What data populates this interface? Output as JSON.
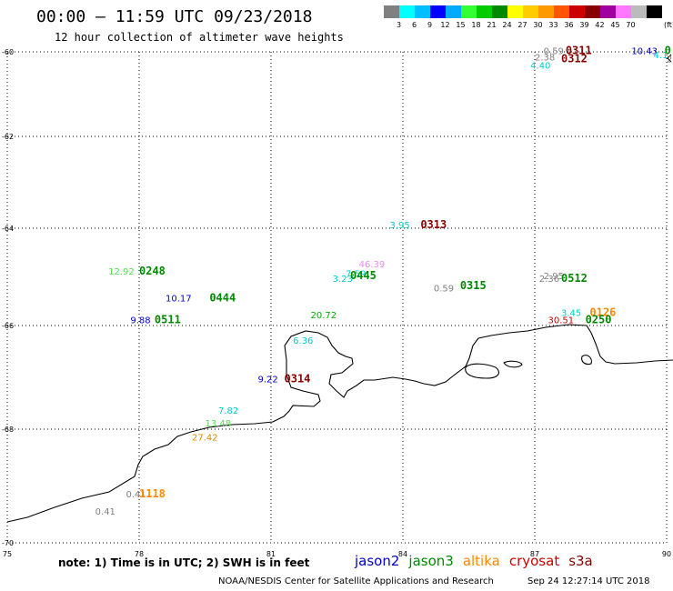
{
  "header": {
    "title": "00:00 – 11:59 UTC 09/23/2018",
    "subtitle": "12 hour collection of altimeter wave heights"
  },
  "colorbar": {
    "colors": [
      "#808080",
      "#00ffff",
      "#00bfff",
      "#0000ff",
      "#00aaff",
      "#33ff33",
      "#00cc00",
      "#008800",
      "#ffff00",
      "#ffcc00",
      "#ff9900",
      "#ff5500",
      "#cc0000",
      "#880000",
      "#a000a0",
      "#ff77ff",
      "#bbbbbb",
      "#000000"
    ],
    "ticks": [
      "3",
      "6",
      "9",
      "12",
      "15",
      "18",
      "21",
      "24",
      "27",
      "30",
      "33",
      "36",
      "39",
      "42",
      "45",
      "70"
    ],
    "unit": "(ft)"
  },
  "axes": {
    "lon_ticks": [
      "75",
      "78",
      "81",
      "84",
      "87",
      "90"
    ],
    "lat_ticks": [
      "-60",
      "-62",
      "-64",
      "-66",
      "-68",
      "-70"
    ],
    "lon_range": [
      75,
      90
    ],
    "lat_range": [
      -70,
      -60
    ]
  },
  "observations": [
    {
      "value": "0.59",
      "color": "#808080",
      "lon": 87.2,
      "lat": -60.05
    },
    {
      "value": "2.38",
      "color": "#808080",
      "lon": 87.0,
      "lat": -60.2
    },
    {
      "value": "4.40",
      "color": "#00cccc",
      "lon": 86.9,
      "lat": -60.4
    },
    {
      "value": "10.43",
      "color": "#0000cc",
      "lon": 89.2,
      "lat": -60.05
    },
    {
      "value": "4.1",
      "color": "#00cccc",
      "lon": 89.7,
      "lat": -60.15
    },
    {
      "value": "2",
      "color": "#808080",
      "lon": 90.0,
      "lat": -60.25
    },
    {
      "value": "3.95",
      "color": "#00cccc",
      "lon": 83.7,
      "lat": -64.0
    },
    {
      "value": "46.39",
      "color": "#ee88ee",
      "lon": 83.0,
      "lat": -64.8
    },
    {
      "value": "7.59",
      "color": "#00cccc",
      "lon": 82.7,
      "lat": -65.0
    },
    {
      "value": "3.23",
      "color": "#00cccc",
      "lon": 82.4,
      "lat": -65.1
    },
    {
      "value": "0.59",
      "color": "#808080",
      "lon": 84.7,
      "lat": -65.3
    },
    {
      "value": "2.36",
      "color": "#808080",
      "lon": 87.1,
      "lat": -65.1
    },
    {
      "value": "2.95",
      "color": "#808080",
      "lon": 87.2,
      "lat": -65.05
    },
    {
      "value": "12.92",
      "color": "#55dd55",
      "lon": 77.3,
      "lat": -64.95
    },
    {
      "value": "10.17",
      "color": "#0000cc",
      "lon": 78.6,
      "lat": -65.5
    },
    {
      "value": "9.88",
      "color": "#0000cc",
      "lon": 77.8,
      "lat": -65.95
    },
    {
      "value": "20.72",
      "color": "#00aa00",
      "lon": 81.9,
      "lat": -65.85
    },
    {
      "value": "3.45",
      "color": "#00cccc",
      "lon": 87.6,
      "lat": -65.8
    },
    {
      "value": "30.51",
      "color": "#cc0000",
      "lon": 87.3,
      "lat": -65.95
    },
    {
      "value": "6.36",
      "color": "#00cccc",
      "lon": 81.5,
      "lat": -66.35
    },
    {
      "value": "9.22",
      "color": "#0000cc",
      "lon": 80.7,
      "lat": -67.1
    },
    {
      "value": "7.82",
      "color": "#00cccc",
      "lon": 79.8,
      "lat": -67.7
    },
    {
      "value": "13.48",
      "color": "#55dd55",
      "lon": 79.5,
      "lat": -67.95
    },
    {
      "value": "27.42",
      "color": "#dd8800",
      "lon": 79.2,
      "lat": -68.2
    },
    {
      "value": "0.41",
      "color": "#808080",
      "lon": 77.7,
      "lat": -69.2
    },
    {
      "value": "0.41",
      "color": "#808080",
      "lon": 77.0,
      "lat": -69.5
    }
  ],
  "time_labels": [
    {
      "text": "0311",
      "color": "#880000",
      "lon": 87.7,
      "lat": -60.05
    },
    {
      "text": "0312",
      "color": "#880000",
      "lon": 87.6,
      "lat": -60.25
    },
    {
      "text": "0",
      "color": "#008800",
      "lon": 89.95,
      "lat": -60.05
    },
    {
      "text": "0313",
      "color": "#880000",
      "lon": 84.4,
      "lat": -64.0
    },
    {
      "text": "0445",
      "color": "#008800",
      "lon": 82.8,
      "lat": -65.05
    },
    {
      "text": "0315",
      "color": "#008800",
      "lon": 85.3,
      "lat": -65.25
    },
    {
      "text": "0512",
      "color": "#008800",
      "lon": 87.6,
      "lat": -65.1
    },
    {
      "text": "0248",
      "color": "#008800",
      "lon": 78.0,
      "lat": -64.95
    },
    {
      "text": "0444",
      "color": "#008800",
      "lon": 79.6,
      "lat": -65.5
    },
    {
      "text": "0511",
      "color": "#008800",
      "lon": 78.35,
      "lat": -65.95
    },
    {
      "text": "0126",
      "color": "#ff8800",
      "lon": 88.25,
      "lat": -65.8
    },
    {
      "text": "0250",
      "color": "#008800",
      "lon": 88.15,
      "lat": -65.95
    },
    {
      "text": "0314",
      "color": "#880000",
      "lon": 81.3,
      "lat": -67.1
    },
    {
      "text": "1118",
      "color": "#ff8800",
      "lon": 78.0,
      "lat": -69.2
    }
  ],
  "note": "note: 1) Time is in UTC; 2) SWH is in feet",
  "legend": [
    {
      "label": "jason2",
      "color": "#0000cc"
    },
    {
      "label": "jason3",
      "color": "#008800"
    },
    {
      "label": "altika",
      "color": "#ff8800"
    },
    {
      "label": "cryosat",
      "color": "#cc0000"
    },
    {
      "label": "s3a",
      "color": "#880000"
    }
  ],
  "footer": {
    "credit": "NOAA/NESDIS Center for Satellite Applications and Research",
    "timestamp": "Sep 24 12:27:14 UTC 2018"
  }
}
